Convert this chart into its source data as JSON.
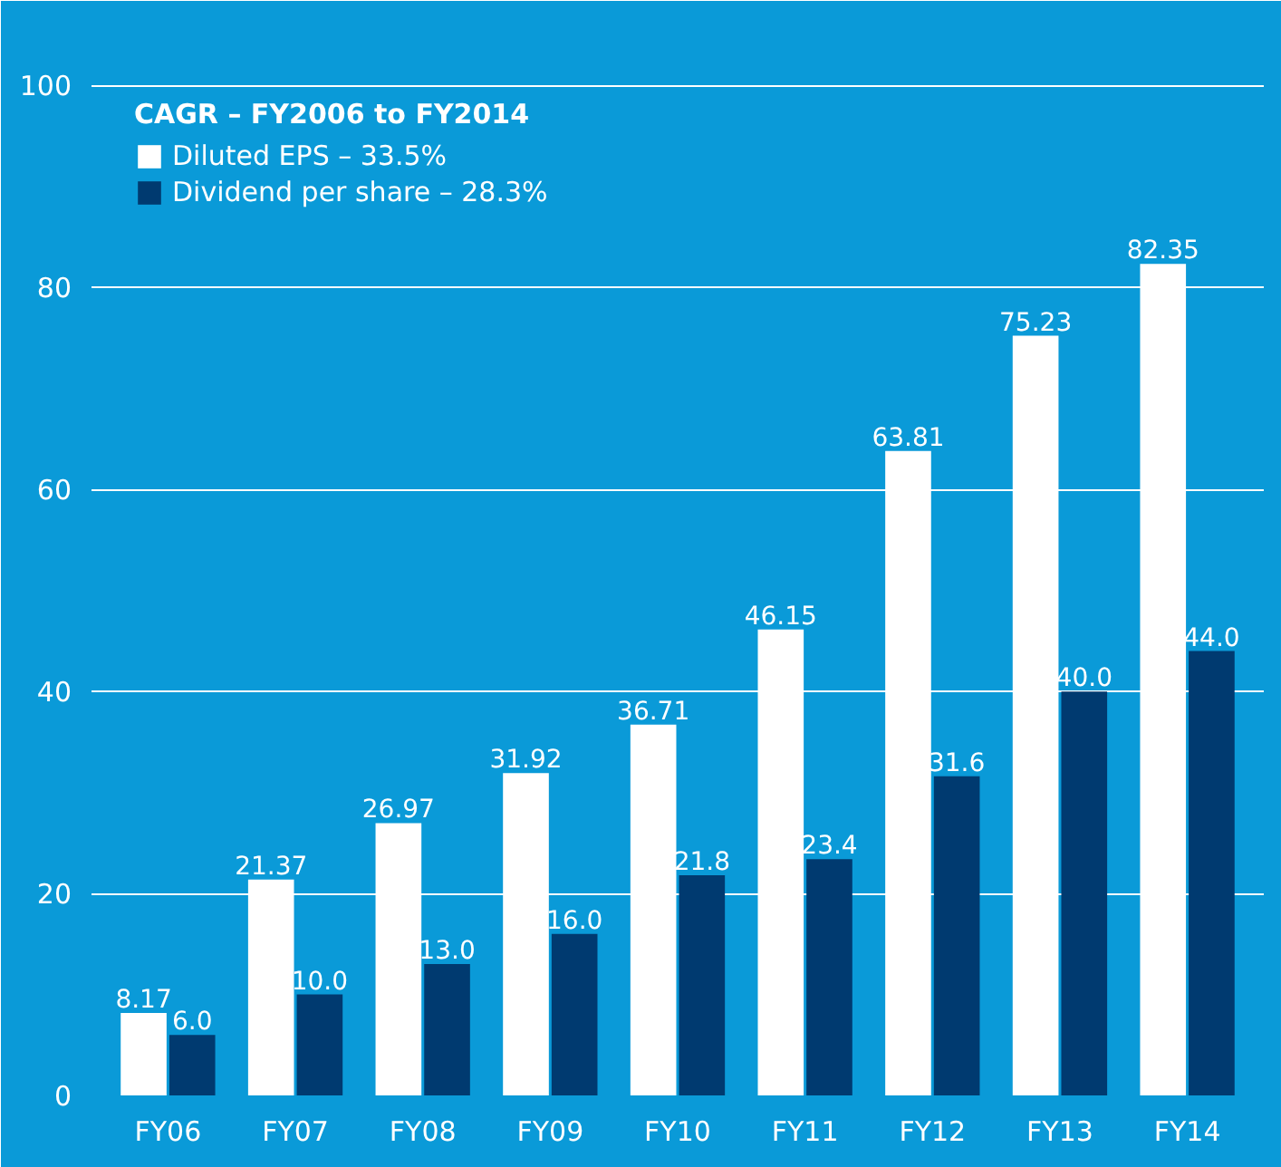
{
  "chart_data": {
    "type": "bar",
    "categories": [
      "FY06",
      "FY07",
      "FY08",
      "FY09",
      "FY10",
      "FY11",
      "FY12",
      "FY13",
      "FY14"
    ],
    "legend_title": "CAGR – FY2006 to FY2014",
    "series": [
      {
        "name": "Diluted EPS – 33.5%",
        "color": "#ffffff",
        "values": [
          8.17,
          21.37,
          26.97,
          31.92,
          36.71,
          46.15,
          63.81,
          75.23,
          82.35
        ],
        "value_labels": [
          "8.17",
          "21.37",
          "26.97",
          "31.92",
          "36.71",
          "46.15",
          "63.81",
          "75.23",
          "82.35"
        ]
      },
      {
        "name": "Dividend per share – 28.3%",
        "color": "#003a70",
        "values": [
          6.0,
          10.0,
          13.0,
          16.0,
          21.8,
          23.4,
          31.6,
          40.0,
          44.0
        ],
        "value_labels": [
          "6.0",
          "10.0",
          "13.0",
          "16.0",
          "21.8",
          "23.4",
          "31.6",
          "40.0",
          "44.0"
        ]
      }
    ],
    "ylim": [
      0,
      103
    ],
    "yticks": [
      0,
      20,
      40,
      60,
      80,
      100
    ],
    "grid": "y",
    "legend": "top left"
  }
}
